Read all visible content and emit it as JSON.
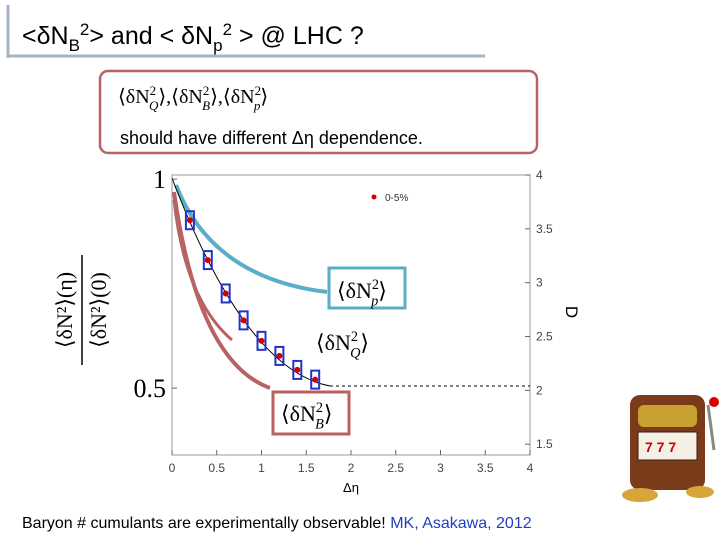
{
  "title": {
    "segments": [
      {
        "text": "<δN"
      },
      {
        "text": "B",
        "shift": "sub"
      },
      {
        "text": "2",
        "shift": "sup"
      },
      {
        "text": "> and < δN"
      },
      {
        "text": "p",
        "shift": "sub"
      },
      {
        "text": "2",
        "shift": "sup"
      },
      {
        "text": " > @ LHC ?"
      }
    ]
  },
  "box": {
    "formula": [
      {
        "before": "⟨δN",
        "sup": "2",
        "sub": "Q",
        "after": "⟩,"
      },
      {
        "before": "⟨δN",
        "sup": "2",
        "sub": "B",
        "after": "⟩,"
      },
      {
        "before": "⟨δN",
        "sup": "2",
        "sub": "p",
        "after": "⟩"
      }
    ],
    "text": "should have different Δη dependence."
  },
  "chart_data": {
    "type": "scatter",
    "x": [
      0.2,
      0.4,
      0.6,
      0.8,
      1.0,
      1.2,
      1.4,
      1.6
    ],
    "series": [
      {
        "name": "0-5%",
        "color": "#d40000",
        "values": [
          3.58,
          3.21,
          2.9,
          2.65,
          2.46,
          2.32,
          2.19,
          2.1
        ]
      }
    ],
    "xlim": [
      0,
      4
    ],
    "xticks": [
      0,
      0.5,
      1,
      1.5,
      2,
      2.5,
      3,
      3.5,
      4
    ],
    "ylim": [
      1.4,
      4
    ],
    "yticks": [
      1.5,
      2,
      2.5,
      3,
      3.5,
      4
    ],
    "y2lim": [
      0.34,
      1.01
    ],
    "y2ticks": [
      0.5,
      1
    ],
    "xlabel": "Δη",
    "ylabel": "D",
    "y2label": {
      "numerator": "⟨δN²⟩(η)",
      "denominator": "⟨δN²⟩(0)"
    },
    "annotations": [
      {
        "before": "⟨δN",
        "sup": "2",
        "sub": "p",
        "after": "⟩"
      },
      {
        "before": "⟨δN",
        "sup": "2",
        "sub": "Q",
        "after": "⟩"
      },
      {
        "before": "⟨δN",
        "sup": "2",
        "sub": "B",
        "after": "⟩"
      }
    ]
  },
  "footer": {
    "text": "Baryon # cumulants are experimentally observable!",
    "citation": " MK, Asakawa, 2012"
  }
}
